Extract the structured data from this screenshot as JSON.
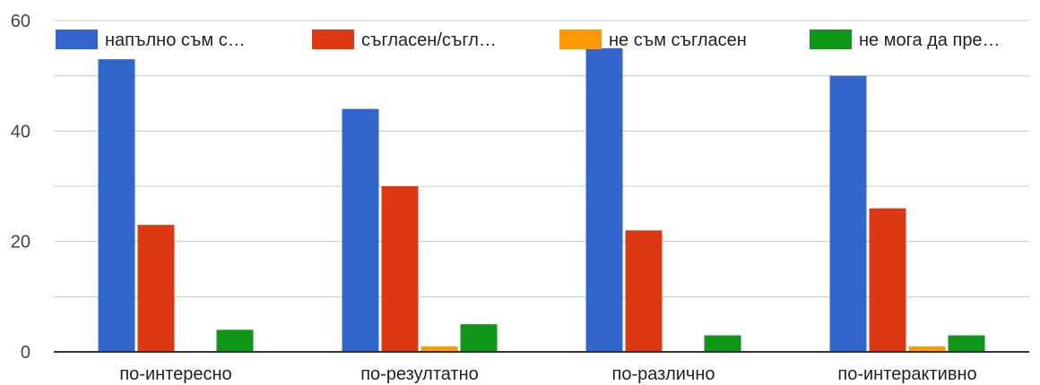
{
  "chart_data": {
    "type": "bar",
    "categories": [
      "по-интересно",
      "по-резултатно",
      "по-различно",
      "по-интерактивно"
    ],
    "series": [
      {
        "name": "напълно съм с…",
        "color": "#3366cc",
        "values": [
          53,
          44,
          55,
          50
        ]
      },
      {
        "name": "съгласен/съгл…",
        "color": "#dc3912",
        "values": [
          23,
          30,
          22,
          26
        ]
      },
      {
        "name": "не съм съгласен",
        "color": "#ff9900",
        "values": [
          0,
          1,
          0,
          1
        ]
      },
      {
        "name": "не мога да пре…",
        "color": "#109618",
        "values": [
          4,
          5,
          3,
          3
        ]
      }
    ],
    "ylim": [
      0,
      60
    ],
    "yticks": [
      "0",
      "20",
      "40",
      "60"
    ],
    "grid": true,
    "legend": "top"
  }
}
